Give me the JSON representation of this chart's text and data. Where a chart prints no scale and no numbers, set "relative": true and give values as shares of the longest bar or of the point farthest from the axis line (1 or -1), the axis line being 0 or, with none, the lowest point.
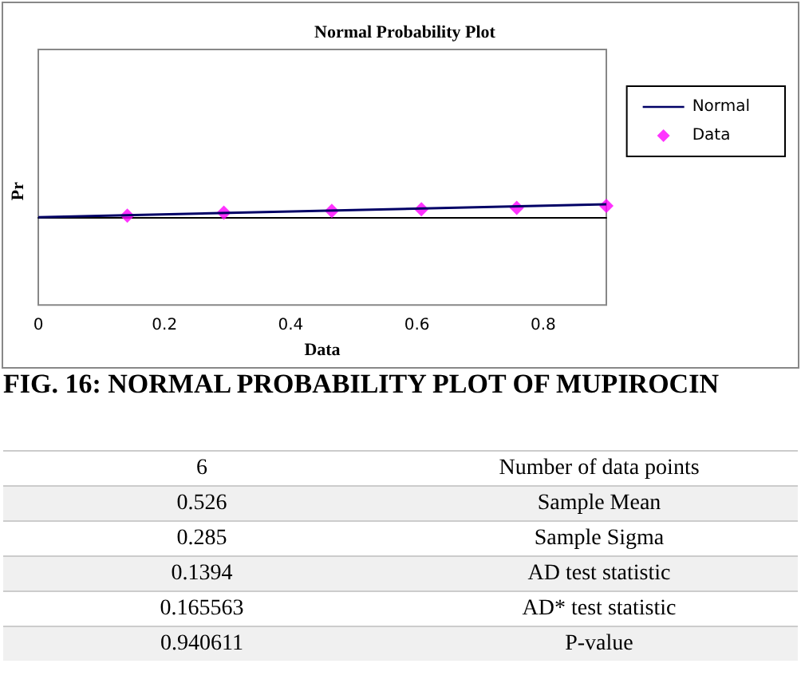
{
  "chart_data": {
    "type": "scatter",
    "title": "Normal Probability Plot",
    "xlabel": "Data",
    "ylabel": "Pr",
    "relative": true,
    "xlim": [
      0,
      0.9
    ],
    "xticks": [
      0,
      0.2,
      0.4,
      0.6,
      0.8
    ],
    "grid": false,
    "legend": "right",
    "series": [
      {
        "name": "Normal",
        "type": "line",
        "color": "#000066",
        "marker": "none",
        "x": [
          0,
          0.9
        ],
        "values": [
          0,
          1
        ]
      },
      {
        "name": "Data",
        "color": "#ff00ff",
        "marker": "diamond",
        "x": [
          0.141,
          0.294,
          0.465,
          0.607,
          0.758,
          0.9
        ],
        "values": [
          0.12,
          0.35,
          0.5,
          0.62,
          0.73,
          0.88
        ]
      }
    ],
    "annotations": [
      "FIG. 16: NORMAL PROBABILITY PLOT OF MUPIROCIN",
      "6",
      "Number of data points",
      "0.526",
      "Sample Mean",
      "0.285",
      "Sample Sigma",
      "0.1394",
      "AD test statistic",
      "0.165563",
      "AD* test statistic",
      "0.940611",
      "P-value"
    ]
  }
}
